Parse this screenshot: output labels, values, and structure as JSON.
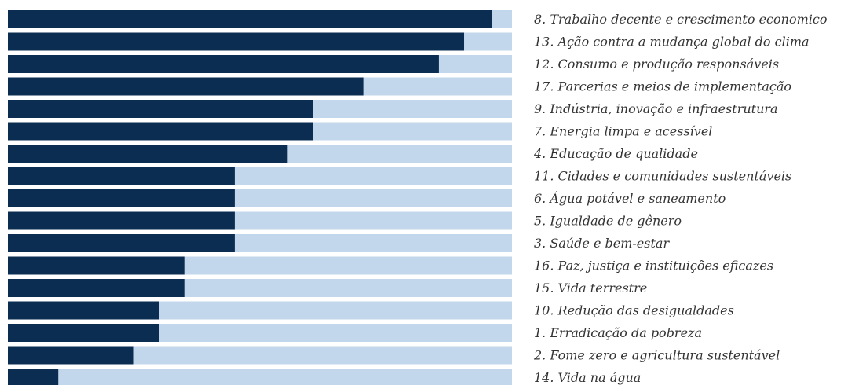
{
  "chart_data": {
    "type": "barh",
    "categories": [
      "8. Trabalho decente e crescimento economico",
      "13. Ação contra a mudança global do clima",
      "12. Consumo e produção responsáveis",
      "17. Parcerias e meios de implementação",
      "9. Indústria, inovação e infraestrutura",
      "7. Energia limpa e acessível",
      "4. Educação de qualidade",
      "11. Cidades e comunidades sustentáveis",
      "6. Água potável e saneamento",
      "5. Igualdade de gênero",
      "3. Saúde e bem-estar",
      "16. Paz, justiça e instituições eficazes",
      "15. Vida terrestre",
      "10. Redução das desigualdades",
      "1. Erradicação da pobreza",
      "2. Fome zero e agricultura sustentável",
      "14. Vida na água"
    ],
    "values": [
      96,
      90.5,
      85.5,
      70.5,
      60.5,
      60.5,
      55.5,
      45,
      45,
      45,
      45,
      35,
      35,
      30,
      30,
      25,
      10
    ],
    "color": "#0b2d52",
    "track_color": "#c2d7eb",
    "xlim": [
      0,
      100
    ]
  }
}
